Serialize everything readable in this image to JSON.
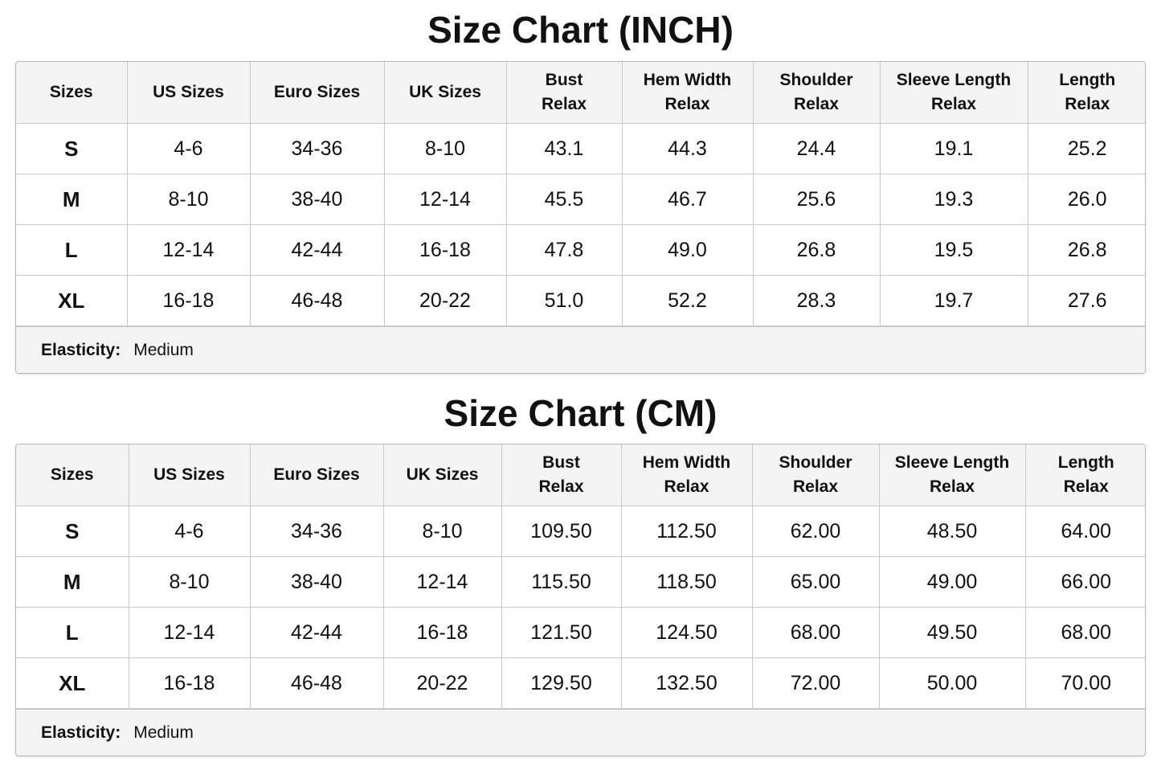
{
  "tables": [
    {
      "title": "Size Chart (INCH)",
      "columns": [
        "Sizes",
        "US Sizes",
        "Euro Sizes",
        "UK Sizes",
        "Bust\nRelax",
        "Hem Width\nRelax",
        "Shoulder\nRelax",
        "Sleeve Length\nRelax",
        "Length\nRelax"
      ],
      "rows": [
        [
          "S",
          "4-6",
          "34-36",
          "8-10",
          "43.1",
          "44.3",
          "24.4",
          "19.1",
          "25.2"
        ],
        [
          "M",
          "8-10",
          "38-40",
          "12-14",
          "45.5",
          "46.7",
          "25.6",
          "19.3",
          "26.0"
        ],
        [
          "L",
          "12-14",
          "42-44",
          "16-18",
          "47.8",
          "49.0",
          "26.8",
          "19.5",
          "26.8"
        ],
        [
          "XL",
          "16-18",
          "46-48",
          "20-22",
          "51.0",
          "52.2",
          "28.3",
          "19.7",
          "27.6"
        ]
      ],
      "footer": {
        "label": "Elasticity:",
        "value": "Medium"
      }
    },
    {
      "title": "Size Chart (CM)",
      "columns": [
        "Sizes",
        "US Sizes",
        "Euro Sizes",
        "UK Sizes",
        "Bust\nRelax",
        "Hem Width\nRelax",
        "Shoulder\nRelax",
        "Sleeve Length\nRelax",
        "Length\nRelax"
      ],
      "rows": [
        [
          "S",
          "4-6",
          "34-36",
          "8-10",
          "109.50",
          "112.50",
          "62.00",
          "48.50",
          "64.00"
        ],
        [
          "M",
          "8-10",
          "38-40",
          "12-14",
          "115.50",
          "118.50",
          "65.00",
          "49.00",
          "66.00"
        ],
        [
          "L",
          "12-14",
          "42-44",
          "16-18",
          "121.50",
          "124.50",
          "68.00",
          "49.50",
          "68.00"
        ],
        [
          "XL",
          "16-18",
          "46-48",
          "20-22",
          "129.50",
          "132.50",
          "72.00",
          "50.00",
          "70.00"
        ]
      ],
      "footer": {
        "label": "Elasticity:",
        "value": "Medium"
      }
    }
  ]
}
